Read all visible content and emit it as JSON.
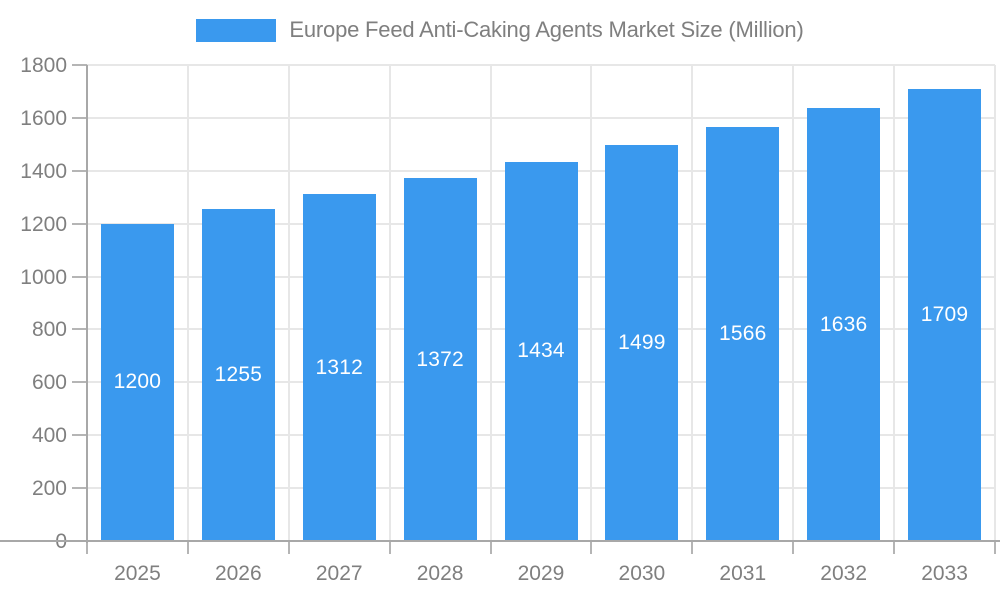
{
  "page": {
    "background": "#ffffff"
  },
  "legend": {
    "position": "top-center"
  },
  "chart_data": {
    "type": "bar",
    "title": "Europe Feed Anti-Caking Agents Market Size (Million)",
    "categories": [
      "2025",
      "2026",
      "2027",
      "2028",
      "2029",
      "2030",
      "2031",
      "2032",
      "2033"
    ],
    "values": [
      1200,
      1255,
      1312,
      1372,
      1434,
      1499,
      1566,
      1636,
      1709
    ],
    "xlabel": "",
    "ylabel": "",
    "ylim": [
      0,
      1800
    ],
    "ytick_step": 200,
    "ytick_labels": [
      "0",
      "200",
      "400",
      "600",
      "800",
      "1000",
      "1200",
      "1400",
      "1600",
      "1800"
    ],
    "grid": true,
    "legend_position": "top",
    "value_labels": "centered-inside-bars",
    "colors": {
      "bar": "#3a99ee",
      "value_label": "#ffffff",
      "axis_text": "#7f7f7f",
      "grid_line": "#e7e7e7",
      "axis_line": "#a8a8a8",
      "tick_mark": "#b5b5b5"
    }
  }
}
